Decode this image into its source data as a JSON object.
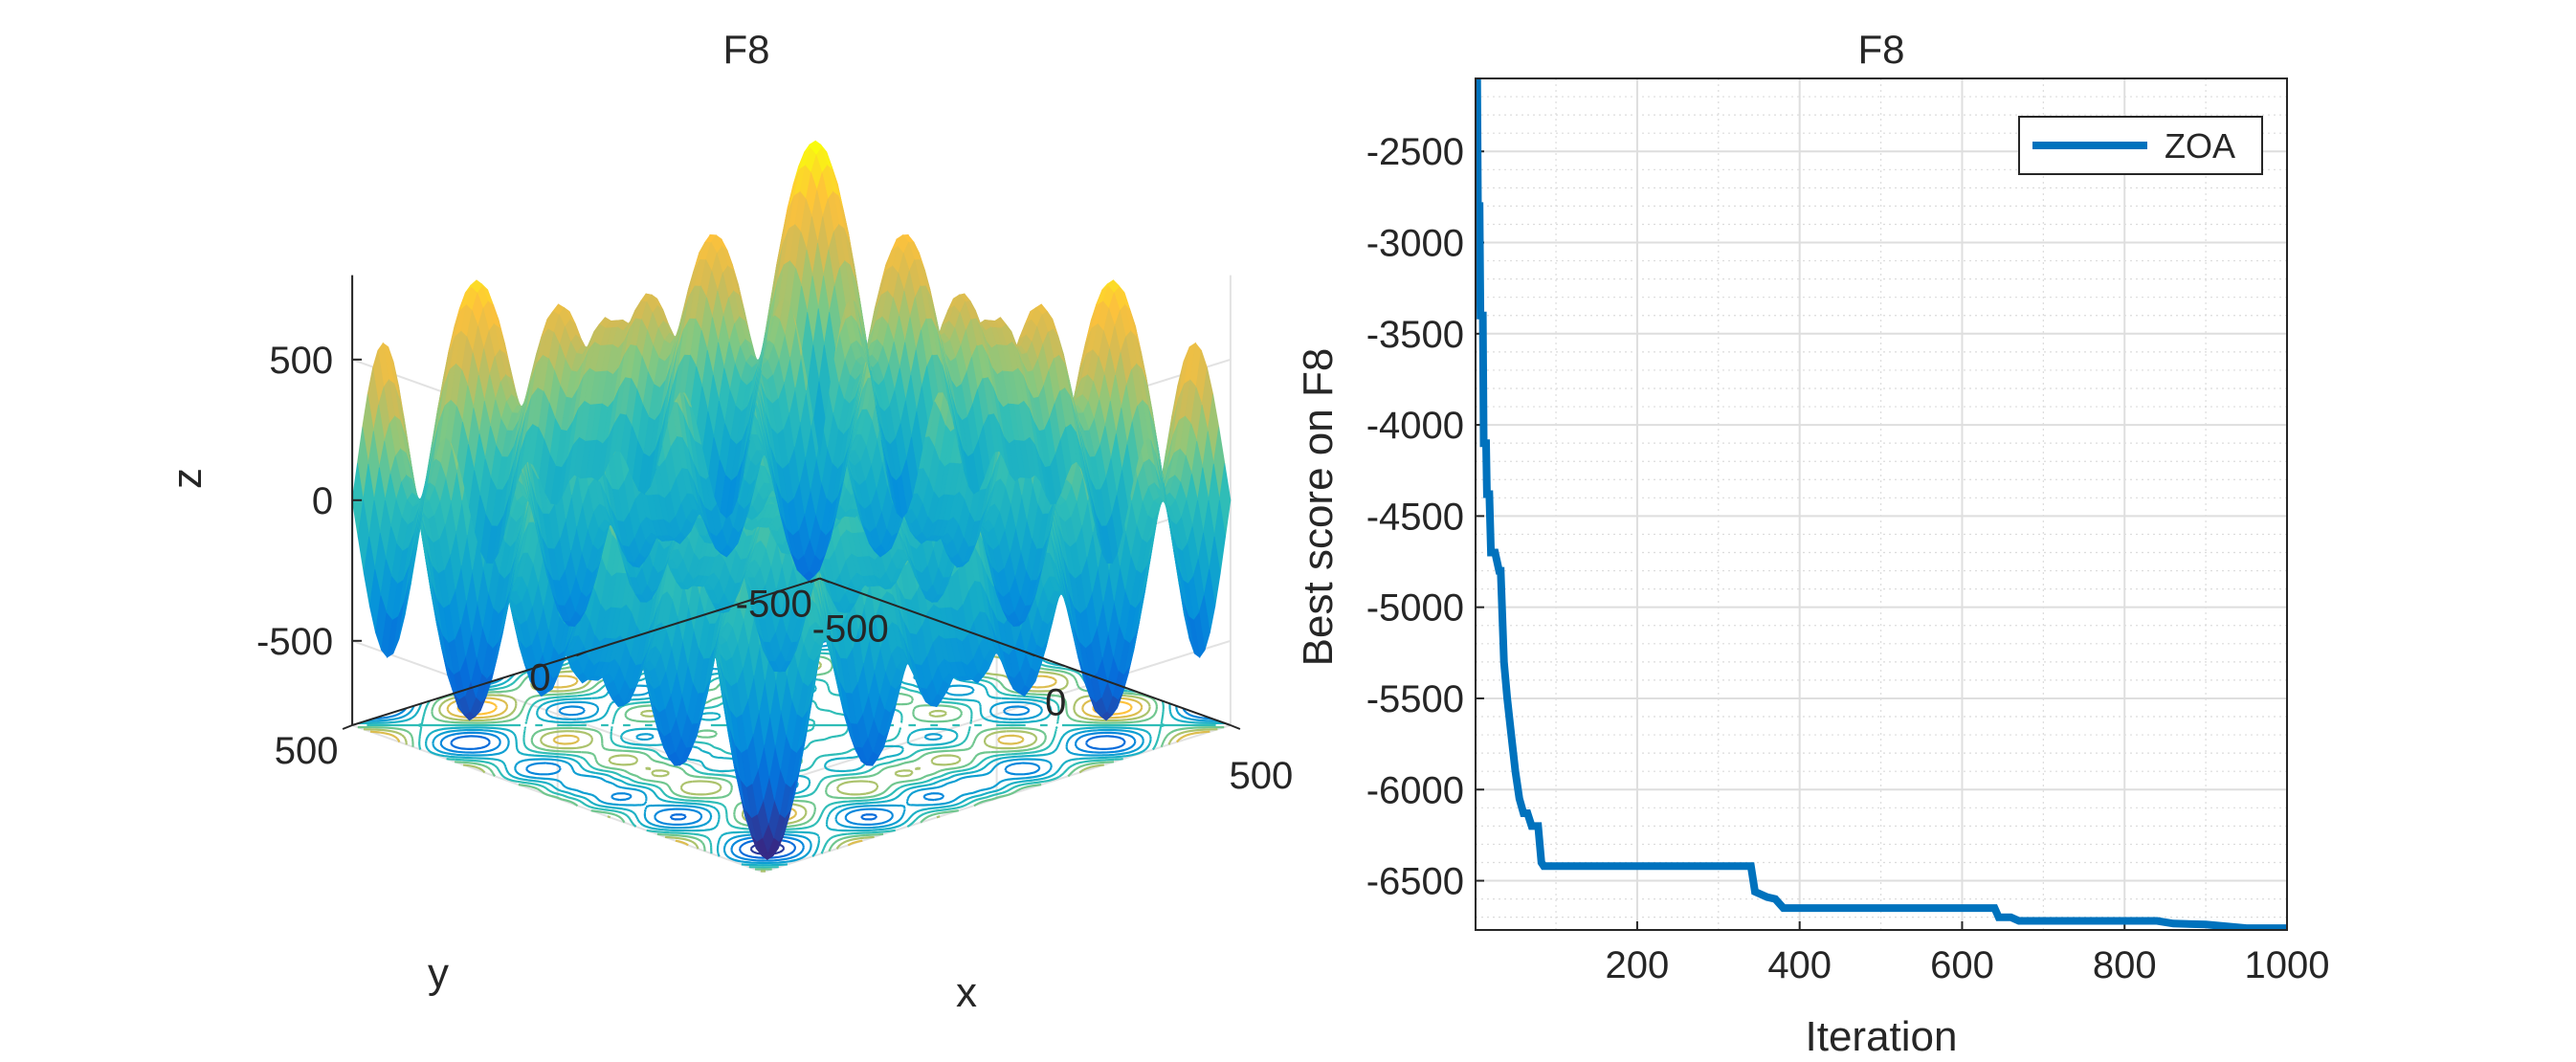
{
  "chart_data": [
    {
      "type": "surface",
      "title": "F8",
      "xlabel": "x",
      "ylabel": "y",
      "zlabel": "z",
      "x_ticks": [
        "-500",
        "0",
        "500"
      ],
      "y_ticks": [
        "-500",
        "0",
        "500"
      ],
      "z_ticks": [
        "-500",
        "0",
        "500"
      ],
      "xlim": [
        -500,
        500
      ],
      "ylim": [
        -500,
        500
      ],
      "zlim": [
        -800,
        800
      ],
      "surface_function": "-x*sin(sqrt(|x|)) - y*sin(sqrt(|y|))",
      "contour_projection": true,
      "grid": true
    },
    {
      "type": "line",
      "title": "F8",
      "xlabel": "Iteration",
      "ylabel": "Best score on F8",
      "xlim": [
        1,
        1000
      ],
      "ylim": [
        -6770,
        -2100
      ],
      "x_ticks": [
        "200",
        "400",
        "600",
        "800",
        "1000"
      ],
      "y_ticks": [
        "-2500",
        "-3000",
        "-3500",
        "-4000",
        "-4500",
        "-5000",
        "-5500",
        "-6000",
        "-6500"
      ],
      "grid": true,
      "minor_grid": true,
      "legend_position": "top-right",
      "series": [
        {
          "name": "ZOA",
          "color": "#0072BD",
          "x": [
            1,
            3,
            4,
            6,
            7,
            10,
            11,
            14,
            15,
            18,
            20,
            25,
            30,
            32,
            36,
            40,
            45,
            50,
            55,
            60,
            65,
            70,
            75,
            78,
            82,
            85,
            90,
            120,
            200,
            300,
            340,
            345,
            360,
            370,
            380,
            400,
            500,
            600,
            640,
            645,
            660,
            670,
            700,
            800,
            840,
            860,
            900,
            950,
            1000
          ],
          "y": [
            -2100,
            -2100,
            -2800,
            -2800,
            -3400,
            -3400,
            -4100,
            -4100,
            -4380,
            -4380,
            -4700,
            -4700,
            -4800,
            -4800,
            -5300,
            -5500,
            -5700,
            -5900,
            -6050,
            -6130,
            -6130,
            -6200,
            -6200,
            -6200,
            -6400,
            -6420,
            -6420,
            -6420,
            -6420,
            -6420,
            -6420,
            -6560,
            -6590,
            -6600,
            -6650,
            -6650,
            -6650,
            -6650,
            -6650,
            -6700,
            -6700,
            -6720,
            -6720,
            -6720,
            -6720,
            -6735,
            -6740,
            -6760,
            -6760
          ]
        }
      ]
    }
  ]
}
